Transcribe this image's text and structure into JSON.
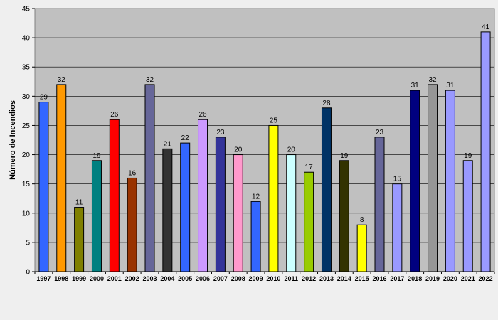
{
  "chart_data": {
    "type": "bar",
    "title": "",
    "xlabel": "",
    "ylabel": "Número de Incendios",
    "ylim": [
      0,
      45
    ],
    "yticks": [
      0,
      5,
      10,
      15,
      20,
      25,
      30,
      35,
      40,
      45
    ],
    "grid": true,
    "legend": "none",
    "categories": [
      "1997",
      "1998",
      "1999",
      "2000",
      "2001",
      "2002",
      "2003",
      "2004",
      "2005",
      "2006",
      "2007",
      "2008",
      "2009",
      "2010",
      "2011",
      "2012",
      "2013",
      "2014",
      "2015",
      "2016",
      "2017",
      "2018",
      "2019",
      "2020",
      "2021",
      "2022"
    ],
    "values": [
      29,
      32,
      11,
      19,
      26,
      16,
      32,
      21,
      22,
      26,
      23,
      20,
      12,
      25,
      20,
      17,
      28,
      19,
      8,
      23,
      15,
      31,
      32,
      31,
      19,
      41
    ],
    "colors": [
      "#3366ff",
      "#ff9900",
      "#808000",
      "#008080",
      "#ff0000",
      "#993300",
      "#666699",
      "#333333",
      "#3366ff",
      "#cc99ff",
      "#333399",
      "#ff99cc",
      "#3366ff",
      "#ffff00",
      "#ccffff",
      "#99cc00",
      "#003366",
      "#333300",
      "#ffff00",
      "#666699",
      "#9999ff",
      "#000080",
      "#969696",
      "#9999ff",
      "#9999ff",
      "#9999ff"
    ]
  }
}
